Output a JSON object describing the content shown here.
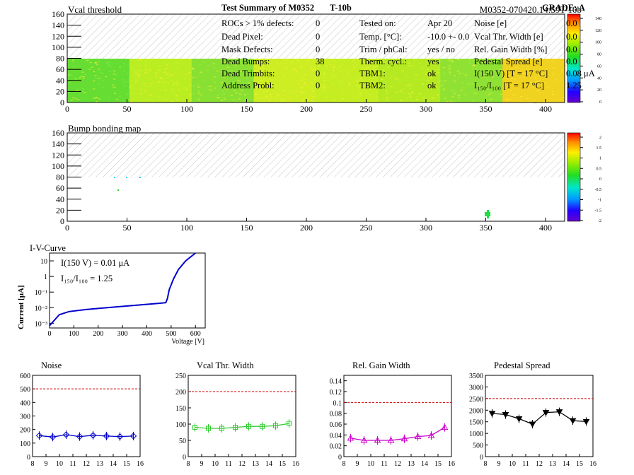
{
  "header": {
    "left_title": "Vcal threshold",
    "right_title": "M0352-070420.14:59T-10b"
  },
  "maps": [
    {
      "name": "vcal",
      "title": "Vcal threshold",
      "xticks": [
        "0",
        "50",
        "100",
        "150",
        "200",
        "250",
        "300",
        "350",
        "400"
      ],
      "yticks": [
        "0",
        "20",
        "40",
        "60",
        "80",
        "100",
        "120",
        "140",
        "160"
      ],
      "xlim": [
        0,
        416
      ],
      "ylim": [
        0,
        160
      ],
      "palette_labels": [
        "140",
        "120",
        "100",
        "80",
        "60",
        "40",
        "20",
        "0"
      ]
    },
    {
      "name": "bump",
      "title": "Bump bonding map",
      "xticks": [
        "0",
        "50",
        "100",
        "150",
        "200",
        "250",
        "300",
        "350",
        "400"
      ],
      "yticks": [
        "0",
        "20",
        "40",
        "60",
        "80",
        "100",
        "120",
        "140",
        "160"
      ],
      "xlim": [
        0,
        416
      ],
      "ylim": [
        0,
        160
      ],
      "palette_labels": [
        "2",
        "1.5",
        "1",
        "0.5",
        "0",
        "-0.5",
        "-1",
        "-1.5",
        "-2"
      ]
    }
  ],
  "iv": {
    "title": "I-V-Curve",
    "ylabel": "Current [μA]",
    "xlabel": "Voltage [V]",
    "xticks": [
      "0",
      "100",
      "200",
      "300",
      "400",
      "500",
      "600"
    ],
    "yticks": [
      "10",
      "1",
      "10⁻¹",
      "10⁻²",
      "10⁻³"
    ],
    "annot1": "I(150 V) = 0.01 μA",
    "annot2": "I₁₅₀/I₁₀₀ =  1.25"
  },
  "summary": {
    "title": "Test Summary of M0352",
    "subtitle": "T-10b",
    "grade": "GRADE:  A",
    "col1": [
      {
        "label": "ROCs > 1% defects:",
        "value": "0"
      },
      {
        "label": "Dead Pixel:",
        "value": "0"
      },
      {
        "label": "Mask Defects:",
        "value": "0"
      },
      {
        "label": "Dead Bumps:",
        "value": "38"
      },
      {
        "label": "Dead Trimbits:",
        "value": "0"
      },
      {
        "label": "Address Probl:",
        "value": "0"
      }
    ],
    "col2": [
      {
        "label": "Tested on:",
        "value": "Apr 20"
      },
      {
        "label": "Temp. [°C]:",
        "value": "-10.0 +- 0.0"
      },
      {
        "label": "Trim / phCal:",
        "value": "yes / no"
      },
      {
        "label": "Therm. cycl.:",
        "value": "yes"
      },
      {
        "label": "TBM1:",
        "value": "ok"
      },
      {
        "label": "TBM2:",
        "value": "ok"
      }
    ],
    "col3": [
      {
        "label": "Noise [e]",
        "value": "0.0"
      },
      {
        "label": "Vcal Thr. Width [e]",
        "value": "0.0"
      },
      {
        "label": "Rel. Gain Width [%]",
        "value": "0.0"
      },
      {
        "label": "Pedestal Spread [e]",
        "value": "0.0"
      },
      {
        "label": "I(150 V) [T = 17 °C]",
        "value": "0.08 μA"
      },
      {
        "label": "I₁₅₀/I₁₀₀  [T = 17 °C]",
        "value": "1.25"
      }
    ]
  },
  "chart_data": [
    {
      "type": "line",
      "title": "Noise",
      "x": [
        8.5,
        9.5,
        10.5,
        11.5,
        12.5,
        13.5,
        14.5,
        15.5
      ],
      "values": [
        155,
        145,
        162,
        148,
        157,
        152,
        148,
        152
      ],
      "xlim": [
        8,
        16
      ],
      "ylim": [
        0,
        600
      ],
      "xticks": [
        "8",
        "9",
        "10",
        "11",
        "12",
        "13",
        "14",
        "15",
        "16"
      ],
      "yticks": [
        "0",
        "100",
        "200",
        "300",
        "400",
        "500",
        "600"
      ],
      "threshold": 500,
      "color": "#0000cc",
      "marker": "diamond"
    },
    {
      "type": "line",
      "title": "Vcal Thr. Width",
      "x": [
        8.5,
        9.5,
        10.5,
        11.5,
        12.5,
        13.5,
        14.5,
        15.5
      ],
      "values": [
        90,
        87,
        87,
        90,
        93,
        93,
        95,
        102
      ],
      "xlim": [
        8,
        16
      ],
      "ylim": [
        0,
        250
      ],
      "xticks": [
        "8",
        "9",
        "10",
        "11",
        "12",
        "13",
        "14",
        "15",
        "16"
      ],
      "yticks": [
        "0",
        "50",
        "100",
        "150",
        "200",
        "250"
      ],
      "threshold": 200,
      "color": "#33cc33",
      "marker": "square"
    },
    {
      "type": "line",
      "title": "Rel. Gain Width",
      "x": [
        8.5,
        9.5,
        10.5,
        11.5,
        12.5,
        13.5,
        14.5,
        15.5
      ],
      "values": [
        0.034,
        0.03,
        0.03,
        0.03,
        0.033,
        0.037,
        0.039,
        0.054
      ],
      "xlim": [
        8,
        16
      ],
      "ylim": [
        0,
        0.15
      ],
      "xticks": [
        "8",
        "9",
        "10",
        "11",
        "12",
        "13",
        "14",
        "15",
        "16"
      ],
      "yticks": [
        "0",
        "0.02",
        "0.04",
        "0.06",
        "0.08",
        "0.1",
        "0.12",
        "0.14"
      ],
      "threshold": 0.1,
      "color": "#cc00cc",
      "marker": "triangle"
    },
    {
      "type": "line",
      "title": "Pedestal Spread",
      "x": [
        8.5,
        9.5,
        10.5,
        11.5,
        12.5,
        13.5,
        14.5,
        15.5
      ],
      "values": [
        1860,
        1810,
        1630,
        1400,
        1900,
        1930,
        1550,
        1510
      ],
      "xlim": [
        8,
        16
      ],
      "ylim": [
        0,
        3500
      ],
      "xticks": [
        "8",
        "9",
        "10",
        "11",
        "12",
        "13",
        "14",
        "15",
        "16"
      ],
      "yticks": [
        "0",
        "500",
        "1000",
        "1500",
        "2000",
        "2500",
        "3000",
        "3500"
      ],
      "threshold": 2500,
      "color": "#000000",
      "marker": "tri-down"
    }
  ]
}
